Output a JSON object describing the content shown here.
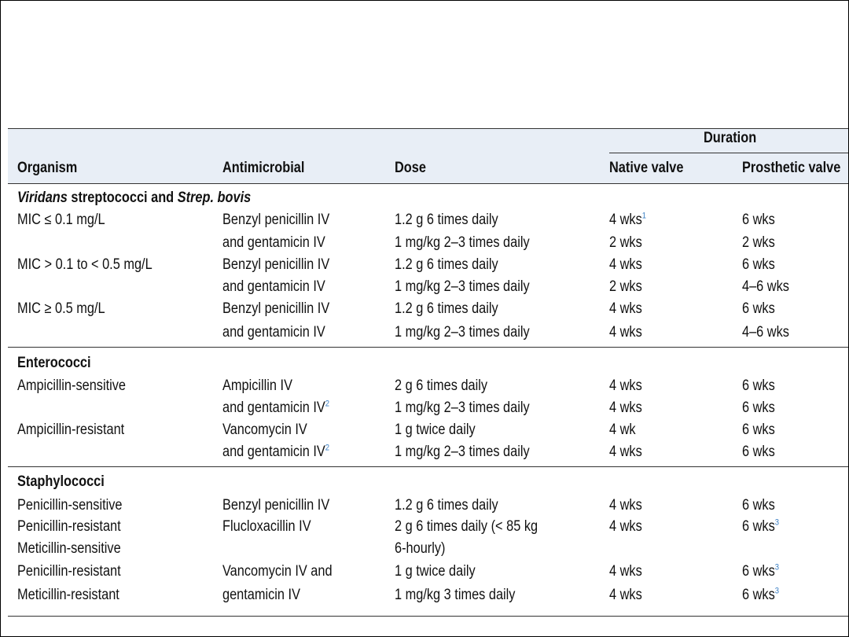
{
  "table": {
    "header": {
      "duration": "Duration",
      "organism": "Organism",
      "antimicrobial": "Antimicrobial",
      "dose": "Dose",
      "native_valve": "Native valve",
      "prosthetic_valve": "Prosthetic valve"
    },
    "section1": {
      "title_italic1": "Viridans",
      "title_mid": " streptococci and ",
      "title_italic2": "Strep. bovis",
      "rows": [
        {
          "organism": "MIC ≤ 0.1 mg/L",
          "antimicrobial": "Benzyl penicillin IV",
          "dose": "1.2 g 6 times daily",
          "native": "4 wks",
          "native_sup": "1",
          "prosthetic": "6 wks"
        },
        {
          "organism": "",
          "antimicrobial": "and gentamicin IV",
          "dose": "1 mg/kg 2–3 times daily",
          "native": "2 wks",
          "prosthetic": "2 wks"
        },
        {
          "organism": "MIC > 0.1 to < 0.5 mg/L",
          "antimicrobial": "Benzyl penicillin IV",
          "dose": "1.2 g 6 times daily",
          "native": "4 wks",
          "prosthetic": "6 wks"
        },
        {
          "organism": "",
          "antimicrobial": "and gentamicin IV",
          "dose": "1 mg/kg 2–3 times daily",
          "native": "2 wks",
          "prosthetic": "4–6 wks"
        },
        {
          "organism": "MIC ≥ 0.5 mg/L",
          "antimicrobial": "Benzyl penicillin IV",
          "dose": "1.2 g 6 times daily",
          "native": "4 wks",
          "prosthetic": "6 wks"
        },
        {
          "organism": "",
          "antimicrobial": "and gentamicin IV",
          "dose": "1 mg/kg 2–3 times daily",
          "native": "4 wks",
          "prosthetic": "4–6 wks"
        }
      ]
    },
    "section2": {
      "title": "Enterococci",
      "rows": [
        {
          "organism": "Ampicillin-sensitive",
          "antimicrobial": "Ampicillin IV",
          "dose": "2 g 6 times daily",
          "native": "4 wks",
          "prosthetic": "6 wks"
        },
        {
          "organism": "",
          "antimicrobial": "and gentamicin IV",
          "antimicrobial_sup": "2",
          "dose": "1 mg/kg 2–3 times daily",
          "native": "4 wks",
          "prosthetic": "6 wks"
        },
        {
          "organism": "Ampicillin-resistant",
          "antimicrobial": "Vancomycin IV",
          "dose": "1 g twice daily",
          "native": "4 wk",
          "prosthetic": "6 wks"
        },
        {
          "organism": "",
          "antimicrobial": "and gentamicin IV",
          "antimicrobial_sup": "2",
          "dose": "1 mg/kg 2–3 times daily",
          "native": "4 wks",
          "prosthetic": "6 wks"
        }
      ]
    },
    "section3": {
      "title": "Staphylococci",
      "rows": [
        {
          "organism": "Penicillin-sensitive",
          "antimicrobial": "Benzyl penicillin IV",
          "dose": "1.2 g 6 times daily",
          "native": "4 wks",
          "prosthetic": "6 wks"
        },
        {
          "organism": "Penicillin-resistant",
          "antimicrobial": "Flucloxacillin IV",
          "dose": "2 g 6 times daily (< 85 kg",
          "native": "4 wks",
          "prosthetic": "6 wks",
          "prosthetic_sup": "3"
        },
        {
          "organism": "Meticillin-sensitive",
          "antimicrobial": "",
          "dose": "6-hourly)",
          "native": "",
          "prosthetic": ""
        },
        {
          "organism": "Penicillin-resistant",
          "antimicrobial": "Vancomycin IV and",
          "dose": "1 g twice daily",
          "native": "4 wks",
          "prosthetic": "6 wks",
          "prosthetic_sup": "3"
        },
        {
          "organism": "Meticillin-resistant",
          "antimicrobial": "gentamicin IV",
          "dose": "1 mg/kg 3 times daily",
          "native": "4 wks",
          "prosthetic": "6 wks",
          "prosthetic_sup": "3"
        }
      ]
    }
  }
}
